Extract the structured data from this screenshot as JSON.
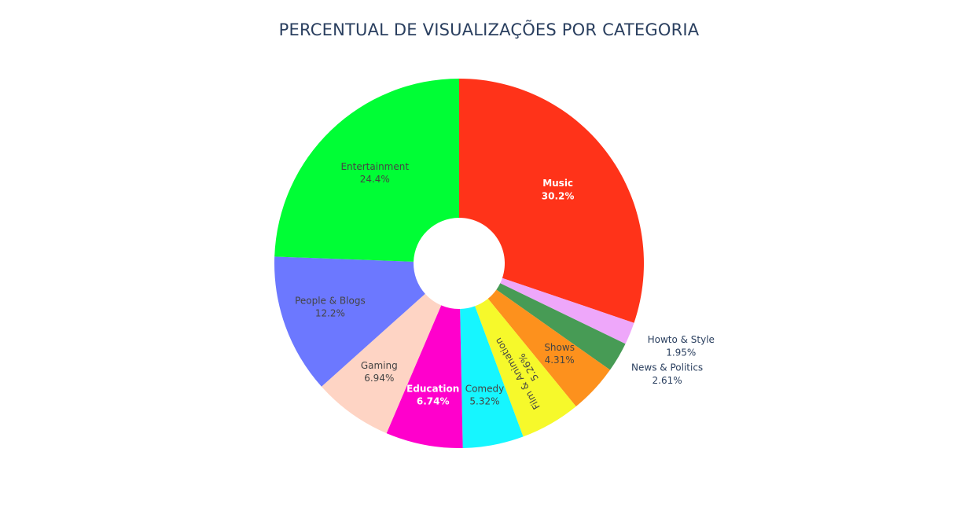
{
  "chart_data": {
    "type": "pie",
    "title": "PERCENTUAL DE VISUALIZAÇÕES POR CATEGORIA",
    "hole": true,
    "slices": [
      {
        "label": "Music",
        "value": 30.2,
        "display": "30.2%",
        "color": "#ff3319",
        "text_color": "#ffffff",
        "bold": true
      },
      {
        "label": "Howto & Style",
        "value": 1.95,
        "display": "1.95%",
        "color": "#eea7fa",
        "text_color": "#2a3f5f",
        "outside": true
      },
      {
        "label": "News & Politics",
        "value": 2.61,
        "display": "2.61%",
        "color": "#479b55",
        "text_color": "#2a3f5f",
        "outside": true
      },
      {
        "label": "Shows",
        "value": 4.31,
        "display": "4.31%",
        "color": "#fd911d",
        "text_color": "#444444"
      },
      {
        "label": "Film & Animation",
        "value": 5.26,
        "display": "5.26%",
        "color": "#f6f92b",
        "text_color": "#444444",
        "rotated": true
      },
      {
        "label": "Comedy",
        "value": 5.32,
        "display": "5.32%",
        "color": "#16f6ff",
        "text_color": "#444444"
      },
      {
        "label": "Education",
        "value": 6.74,
        "display": "6.74%",
        "color": "#ff00cc",
        "text_color": "#ffffff",
        "bold": true
      },
      {
        "label": "Gaming",
        "value": 6.94,
        "display": "6.94%",
        "color": "#fed4c4",
        "text_color": "#444444"
      },
      {
        "label": "People & Blogs",
        "value": 12.2,
        "display": "12.2%",
        "color": "#6c78ff",
        "text_color": "#444444"
      },
      {
        "label": "Entertainment",
        "value": 24.4,
        "display": "24.4%",
        "color": "#00fe35",
        "text_color": "#444444"
      }
    ]
  }
}
